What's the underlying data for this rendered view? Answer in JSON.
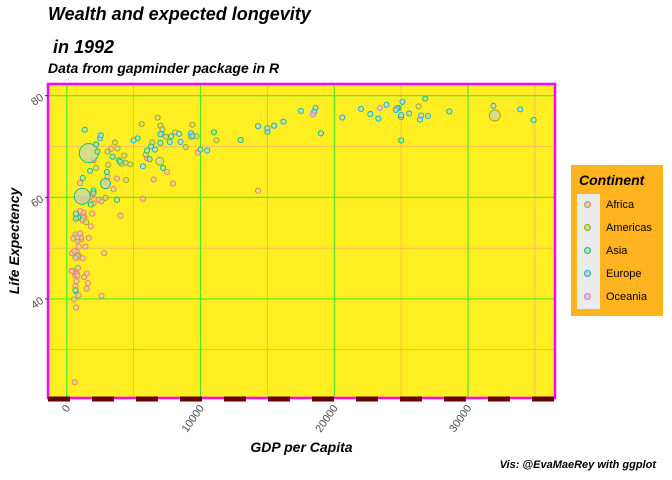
{
  "chart_data": {
    "type": "scatter",
    "title": "Wealth and expected longevity",
    "title_line2": " in 1992",
    "subtitle": "Data from gapminder package in R",
    "caption": "Vis: @EvaMaeRey with ggplot",
    "xlabel": "GDP per Capita",
    "ylabel": "Life Expectency",
    "xlim": [
      -1400,
      36500
    ],
    "ylim": [
      20.5,
      82.3
    ],
    "x_ticks": [
      0,
      10000,
      20000,
      30000
    ],
    "x_tick_labels": [
      "0",
      "10000",
      "20000",
      "30000"
    ],
    "y_ticks": [
      40,
      60,
      80
    ],
    "y_tick_labels": [
      "40",
      "60",
      "80"
    ],
    "grid": true,
    "legend": {
      "title": "Continent",
      "position": "right"
    },
    "colors": {
      "Africa": "#f8766d",
      "Americas": "#a3a500",
      "Asia": "#00bf7d",
      "Europe": "#00b0f6",
      "Oceania": "#e76bf3",
      "panel_bg": "#ffee22",
      "panel_border": "#ff00ff",
      "major_grid": "#44ee22",
      "minor_grid": "#ff8f8f",
      "legend_bg": "#ffb31f"
    },
    "series": [
      {
        "name": "Africa",
        "points": [
          [
            6000,
            67.7
          ],
          [
            2600,
            40.6
          ],
          [
            7950,
            62.7
          ],
          [
            1400,
            50.3
          ],
          [
            900,
            50.3
          ],
          [
            630,
            44.7
          ],
          [
            1800,
            54.3
          ],
          [
            750,
            49.4
          ],
          [
            1060,
            51.7
          ],
          [
            1250,
            57.0
          ],
          [
            460,
            45.5
          ],
          [
            4020,
            56.4
          ],
          [
            1650,
            52.0
          ],
          [
            3750,
            63.7
          ],
          [
            2400,
            59.5
          ],
          [
            410,
            49.0
          ],
          [
            700,
            48.5
          ],
          [
            1500,
            42.0
          ],
          [
            6500,
            63.5
          ],
          [
            660,
            52.7
          ],
          [
            920,
            56.1
          ],
          [
            900,
            48.5
          ],
          [
            750,
            45.0
          ],
          [
            1350,
            59.3
          ],
          [
            1200,
            59.7
          ],
          [
            640,
            42.5
          ],
          [
            9800,
            68.8
          ],
          [
            1080,
            52.1
          ],
          [
            580,
            49.4
          ],
          [
            820,
            48.4
          ],
          [
            1900,
            56.8
          ],
          [
            1300,
            56.2
          ],
          [
            3050,
            64.1
          ],
          [
            1900,
            60.4
          ],
          [
            2000,
            58.8
          ],
          [
            500,
            51.9
          ],
          [
            1500,
            45.0
          ],
          [
            1230,
            56.0
          ],
          [
            730,
            43.5
          ],
          [
            7500,
            65.0
          ],
          [
            600,
            23.6
          ],
          [
            2600,
            59.2
          ],
          [
            1300,
            44.3
          ],
          [
            900,
            48.2
          ],
          [
            1000,
            52.9
          ],
          [
            14300,
            61.3
          ],
          [
            3300,
            69.5
          ],
          [
            2800,
            49.0
          ],
          [
            800,
            48.5
          ],
          [
            5700,
            59.7
          ],
          [
            1000,
            57.3
          ],
          [
            690,
            41.5
          ],
          [
            800,
            51.5
          ],
          [
            880,
            40.7
          ],
          [
            650,
            48.1
          ],
          [
            540,
            39.9
          ],
          [
            360,
            45.5
          ],
          [
            1580,
            43.1
          ],
          [
            800,
            44.6
          ],
          [
            3050,
            63.0
          ],
          [
            1200,
            48.0
          ],
          [
            700,
            38.3
          ],
          [
            1750,
            60.0
          ],
          [
            960,
            59.9
          ],
          [
            840,
            46.1
          ],
          [
            1000,
            62.8
          ],
          [
            3500,
            61.6
          ],
          [
            2000,
            67.3
          ],
          [
            800,
            52.1
          ],
          [
            1200,
            55.5
          ]
        ]
      },
      {
        "name": "Americas",
        "points": [
          [
            9300,
            71.9
          ],
          [
            2900,
            59.9
          ],
          [
            6950,
            67.1
          ],
          [
            26300,
            77.9
          ],
          [
            7000,
            74.1
          ],
          [
            5900,
            68.4
          ],
          [
            6800,
            75.7
          ],
          [
            5600,
            74.4
          ],
          [
            3050,
            69.0
          ],
          [
            3800,
            69.6
          ],
          [
            4400,
            66.8
          ],
          [
            4440,
            63.4
          ],
          [
            1450,
            55.1
          ],
          [
            3100,
            66.4
          ],
          [
            7400,
            71.9
          ],
          [
            9700,
            72.0
          ],
          [
            2200,
            65.8
          ],
          [
            7100,
            72.5
          ],
          [
            4300,
            68.2
          ],
          [
            4750,
            66.5
          ],
          [
            6400,
            70.8
          ],
          [
            7150,
            73.4
          ],
          [
            8900,
            69.9
          ],
          [
            32000,
            76.1
          ],
          [
            8100,
            72.8
          ],
          [
            11200,
            71.2
          ],
          [
            9400,
            74.3
          ],
          [
            3600,
            70.8
          ],
          [
            4100,
            66.6
          ]
        ]
      },
      {
        "name": "Asia",
        "points": [
          [
            650,
            41.7
          ],
          [
            19000,
            72.6
          ],
          [
            840,
            56.0
          ],
          [
            680,
            55.8
          ],
          [
            1650,
            68.7
          ],
          [
            24800,
            77.6
          ],
          [
            1160,
            60.2
          ],
          [
            2900,
            62.7
          ],
          [
            7200,
            65.8
          ],
          [
            3750,
            59.5
          ],
          [
            28600,
            76.9
          ],
          [
            26800,
            79.4
          ],
          [
            3430,
            68.0
          ],
          [
            34900,
            75.2
          ],
          [
            10000,
            69.4
          ],
          [
            6300,
            70.0
          ],
          [
            7000,
            70.7
          ],
          [
            1750,
            65.2
          ],
          [
            2000,
            61.3
          ],
          [
            1350,
            73.3
          ],
          [
            680,
            56.8
          ],
          [
            25000,
            71.2
          ],
          [
            2000,
            60.8
          ],
          [
            1800,
            58.6
          ],
          [
            13000,
            71.3
          ],
          [
            25000,
            75.8
          ],
          [
            2200,
            70.4
          ],
          [
            5300,
            71.6
          ],
          [
            3900,
            67.3
          ],
          [
            6000,
            69.2
          ],
          [
            15000,
            72.9
          ],
          [
            7800,
            72.0
          ],
          [
            1200,
            63.8
          ],
          [
            2300,
            69.0
          ],
          [
            4000,
            67.0
          ],
          [
            6200,
            67.5
          ],
          [
            3000,
            65.0
          ],
          [
            11000,
            72.8
          ]
        ]
      },
      {
        "name": "Europe",
        "points": [
          [
            2500,
            71.6
          ],
          [
            27000,
            76.0
          ],
          [
            25600,
            76.5
          ],
          [
            2550,
            72.2
          ],
          [
            5000,
            71.2
          ],
          [
            8400,
            72.5
          ],
          [
            14300,
            74.0
          ],
          [
            26400,
            75.3
          ],
          [
            20600,
            75.7
          ],
          [
            24700,
            77.5
          ],
          [
            26500,
            76.1
          ],
          [
            17500,
            77.0
          ],
          [
            10500,
            69.2
          ],
          [
            25100,
            78.8
          ],
          [
            23300,
            75.5
          ],
          [
            22000,
            77.4
          ],
          [
            7000,
            72.4
          ],
          [
            24600,
            77.2
          ],
          [
            33900,
            77.3
          ],
          [
            7700,
            70.9
          ],
          [
            16200,
            74.9
          ],
          [
            6600,
            69.4
          ],
          [
            9300,
            72.6
          ],
          [
            8500,
            70.9
          ],
          [
            15000,
            73.6
          ],
          [
            18600,
            77.6
          ],
          [
            23900,
            78.2
          ],
          [
            31900,
            78.0
          ],
          [
            5700,
            66.1
          ],
          [
            22700,
            76.4
          ],
          [
            18500,
            76.8
          ],
          [
            25000,
            76.2
          ],
          [
            15500,
            74.1
          ],
          [
            9400,
            72.1
          ]
        ]
      },
      {
        "name": "Oceania",
        "points": [
          [
            23400,
            77.6
          ],
          [
            18400,
            76.3
          ]
        ]
      }
    ],
    "large_points": [
      {
        "name": "Asia",
        "x": 1650,
        "y": 68.7,
        "r": 9.5
      },
      {
        "name": "Asia",
        "x": 1160,
        "y": 60.2,
        "r": 8
      },
      {
        "name": "Americas",
        "x": 32000,
        "y": 76.1,
        "r": 5.5
      },
      {
        "name": "Americas",
        "x": 6950,
        "y": 67.1,
        "r": 4
      },
      {
        "name": "Asia",
        "x": 2900,
        "y": 62.7,
        "r": 5
      }
    ]
  }
}
